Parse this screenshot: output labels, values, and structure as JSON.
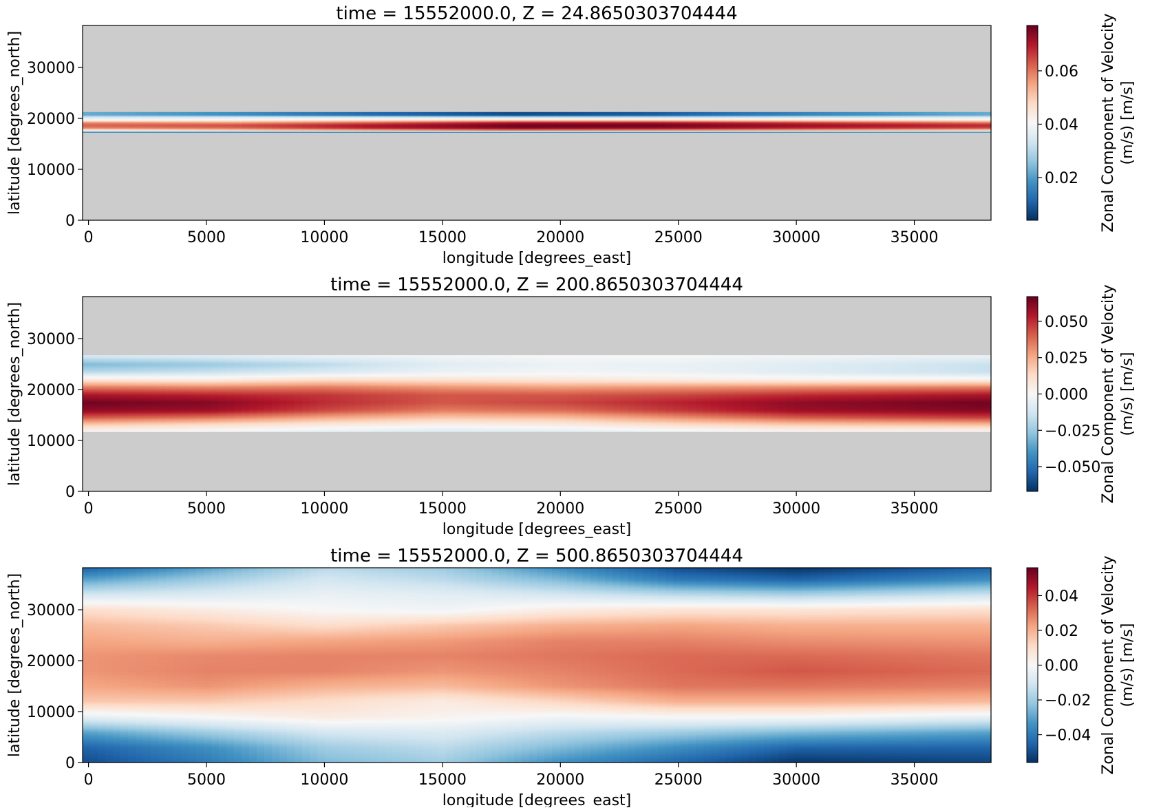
{
  "figure": {
    "colormap": "RdBu_r",
    "land_color": "#cccccc",
    "colormap_stops": [
      "#053061",
      "#2166ac",
      "#4393c3",
      "#92c5de",
      "#d1e5f0",
      "#f7f7f7",
      "#fddbc7",
      "#f4a582",
      "#d6604d",
      "#b2182b",
      "#67001f"
    ]
  },
  "chart_data": [
    {
      "type": "heatmap",
      "title": "time = 15552000.0, Z = 24.8650303704444",
      "xlabel": "longitude [degrees_east]",
      "ylabel": "latitude [degrees_north]",
      "colorbar_label": [
        "Zonal Component of Velocity",
        "(m/s) [m/s]"
      ],
      "xlim": [
        -250,
        38250
      ],
      "ylim": [
        0,
        38250
      ],
      "xticks": [
        0,
        5000,
        10000,
        15000,
        20000,
        25000,
        30000,
        35000
      ],
      "xtick_labels": [
        "0",
        "5000",
        "10000",
        "15000",
        "20000",
        "25000",
        "30000",
        "35000"
      ],
      "yticks": [
        0,
        10000,
        20000,
        30000
      ],
      "ytick_labels": [
        "0",
        "10000",
        "20000",
        "30000"
      ],
      "clim": [
        0.004,
        0.077
      ],
      "cticks": [
        0.02,
        0.04,
        0.06
      ],
      "ctick_labels": [
        "0.02",
        "0.04",
        "0.06"
      ],
      "water_lat_range": [
        17250,
        21250
      ],
      "rows": [
        {
          "lat": 17250,
          "values": [
            0.012,
            0.01,
            0.008,
            0.008,
            0.008,
            0.01,
            0.012
          ]
        },
        {
          "lat": 17750,
          "values": [
            0.045,
            0.05,
            0.055,
            0.06,
            0.058,
            0.055,
            0.05
          ]
        },
        {
          "lat": 18250,
          "values": [
            0.06,
            0.062,
            0.07,
            0.075,
            0.074,
            0.07,
            0.066
          ]
        },
        {
          "lat": 18750,
          "values": [
            0.062,
            0.064,
            0.07,
            0.076,
            0.076,
            0.072,
            0.068
          ]
        },
        {
          "lat": 19250,
          "values": [
            0.058,
            0.056,
            0.062,
            0.07,
            0.07,
            0.066,
            0.06
          ]
        },
        {
          "lat": 19750,
          "values": [
            0.04,
            0.042,
            0.045,
            0.048,
            0.048,
            0.046,
            0.044
          ]
        },
        {
          "lat": 20250,
          "values": [
            0.035,
            0.036,
            0.036,
            0.034,
            0.034,
            0.035,
            0.036
          ]
        },
        {
          "lat": 20750,
          "values": [
            0.022,
            0.018,
            0.012,
            0.008,
            0.01,
            0.016,
            0.022
          ]
        }
      ],
      "row_x": [
        0,
        6000,
        12000,
        18000,
        24000,
        30000,
        38000
      ]
    },
    {
      "type": "heatmap",
      "title": "time = 15552000.0, Z = 200.8650303704444",
      "xlabel": "longitude [degrees_east]",
      "ylabel": "latitude [degrees_north]",
      "colorbar_label": [
        "Zonal Component of Velocity",
        "(m/s) [m/s]"
      ],
      "xlim": [
        -250,
        38250
      ],
      "ylim": [
        0,
        38250
      ],
      "xticks": [
        0,
        5000,
        10000,
        15000,
        20000,
        25000,
        30000,
        35000
      ],
      "xtick_labels": [
        "0",
        "5000",
        "10000",
        "15000",
        "20000",
        "25000",
        "30000",
        "35000"
      ],
      "yticks": [
        0,
        10000,
        20000,
        30000
      ],
      "ytick_labels": [
        "0",
        "10000",
        "20000",
        "30000"
      ],
      "clim": [
        -0.067,
        0.067
      ],
      "cticks": [
        -0.05,
        -0.025,
        0.0,
        0.025,
        0.05
      ],
      "ctick_labels": [
        "−0.050",
        "−0.025",
        "0.000",
        "0.025",
        "0.050"
      ],
      "water_lat_range": [
        11750,
        26750
      ],
      "rows": [
        {
          "lat": 11750,
          "values": [
            0.0,
            -0.002,
            -0.006,
            -0.01,
            -0.008,
            -0.004,
            0.0,
            0.0
          ]
        },
        {
          "lat": 13000,
          "values": [
            0.015,
            0.01,
            0.005,
            0.002,
            0.004,
            0.01,
            0.015,
            0.018
          ]
        },
        {
          "lat": 14500,
          "values": [
            0.04,
            0.035,
            0.025,
            0.018,
            0.02,
            0.03,
            0.04,
            0.045
          ]
        },
        {
          "lat": 16000,
          "values": [
            0.06,
            0.058,
            0.045,
            0.035,
            0.038,
            0.048,
            0.058,
            0.062
          ]
        },
        {
          "lat": 17500,
          "values": [
            0.065,
            0.062,
            0.05,
            0.042,
            0.045,
            0.052,
            0.06,
            0.065
          ]
        },
        {
          "lat": 19000,
          "values": [
            0.055,
            0.052,
            0.048,
            0.042,
            0.042,
            0.045,
            0.05,
            0.055
          ]
        },
        {
          "lat": 20500,
          "values": [
            0.035,
            0.033,
            0.035,
            0.03,
            0.028,
            0.03,
            0.032,
            0.035
          ]
        },
        {
          "lat": 22000,
          "values": [
            0.008,
            0.006,
            0.012,
            0.01,
            0.008,
            0.006,
            0.004,
            0.004
          ]
        },
        {
          "lat": 23500,
          "values": [
            -0.018,
            -0.015,
            -0.01,
            -0.004,
            -0.002,
            -0.004,
            -0.008,
            -0.015
          ]
        },
        {
          "lat": 25000,
          "values": [
            -0.03,
            -0.025,
            -0.018,
            -0.008,
            -0.004,
            -0.005,
            -0.008,
            -0.015
          ]
        },
        {
          "lat": 26750,
          "values": [
            -0.01,
            -0.008,
            -0.004,
            -0.002,
            0.0,
            0.0,
            -0.002,
            -0.004
          ]
        }
      ],
      "row_x": [
        0,
        5000,
        10000,
        15000,
        20000,
        25000,
        30000,
        38000
      ]
    },
    {
      "type": "heatmap",
      "title": "time = 15552000.0, Z = 500.8650303704444",
      "xlabel": "longitude [degrees_east]",
      "ylabel": "latitude [degrees_north]",
      "colorbar_label": [
        "Zonal Component of Velocity",
        "(m/s) [m/s]"
      ],
      "xlim": [
        -250,
        38250
      ],
      "ylim": [
        0,
        38250
      ],
      "xticks": [
        0,
        5000,
        10000,
        15000,
        20000,
        25000,
        30000,
        35000
      ],
      "xtick_labels": [
        "0",
        "5000",
        "10000",
        "15000",
        "20000",
        "25000",
        "30000",
        "35000"
      ],
      "yticks": [
        0,
        10000,
        20000,
        30000
      ],
      "ytick_labels": [
        "0",
        "10000",
        "20000",
        "30000"
      ],
      "clim": [
        -0.056,
        0.056
      ],
      "cticks": [
        -0.04,
        -0.02,
        0.0,
        0.02,
        0.04
      ],
      "ctick_labels": [
        "−0.04",
        "−0.02",
        "0.00",
        "0.02",
        "0.04"
      ],
      "water_lat_range": [
        0,
        38250
      ],
      "rows": [
        {
          "lat": 0,
          "values": [
            -0.05,
            -0.04,
            -0.025,
            -0.02,
            -0.035,
            -0.045,
            -0.055,
            -0.052
          ]
        },
        {
          "lat": 3000,
          "values": [
            -0.045,
            -0.035,
            -0.02,
            -0.015,
            -0.025,
            -0.035,
            -0.045,
            -0.045
          ]
        },
        {
          "lat": 6000,
          "values": [
            -0.03,
            -0.02,
            -0.01,
            -0.008,
            -0.015,
            -0.02,
            -0.025,
            -0.03
          ]
        },
        {
          "lat": 9000,
          "values": [
            -0.005,
            0.0,
            0.005,
            0.002,
            -0.002,
            0.0,
            0.0,
            -0.005
          ]
        },
        {
          "lat": 12000,
          "values": [
            0.015,
            0.015,
            0.01,
            0.005,
            0.012,
            0.02,
            0.02,
            0.018
          ]
        },
        {
          "lat": 15000,
          "values": [
            0.022,
            0.025,
            0.02,
            0.018,
            0.025,
            0.03,
            0.03,
            0.028
          ]
        },
        {
          "lat": 18000,
          "values": [
            0.025,
            0.028,
            0.028,
            0.025,
            0.028,
            0.032,
            0.035,
            0.032
          ]
        },
        {
          "lat": 21000,
          "values": [
            0.025,
            0.027,
            0.028,
            0.028,
            0.03,
            0.032,
            0.032,
            0.03
          ]
        },
        {
          "lat": 24000,
          "values": [
            0.022,
            0.02,
            0.022,
            0.024,
            0.028,
            0.028,
            0.026,
            0.025
          ]
        },
        {
          "lat": 27000,
          "values": [
            0.018,
            0.015,
            0.01,
            0.015,
            0.02,
            0.022,
            0.02,
            0.02
          ]
        },
        {
          "lat": 30000,
          "values": [
            0.01,
            0.005,
            0.0,
            -0.002,
            0.005,
            0.008,
            0.008,
            0.01
          ]
        },
        {
          "lat": 33000,
          "values": [
            -0.01,
            -0.008,
            -0.004,
            -0.006,
            -0.01,
            -0.015,
            -0.018,
            -0.012
          ]
        },
        {
          "lat": 36000,
          "values": [
            -0.03,
            -0.02,
            -0.01,
            -0.015,
            -0.025,
            -0.04,
            -0.045,
            -0.035
          ]
        },
        {
          "lat": 38250,
          "values": [
            -0.045,
            -0.03,
            -0.015,
            -0.02,
            -0.035,
            -0.05,
            -0.055,
            -0.045
          ]
        }
      ],
      "row_x": [
        0,
        5000,
        10000,
        15000,
        20000,
        25000,
        30000,
        38000
      ]
    }
  ]
}
